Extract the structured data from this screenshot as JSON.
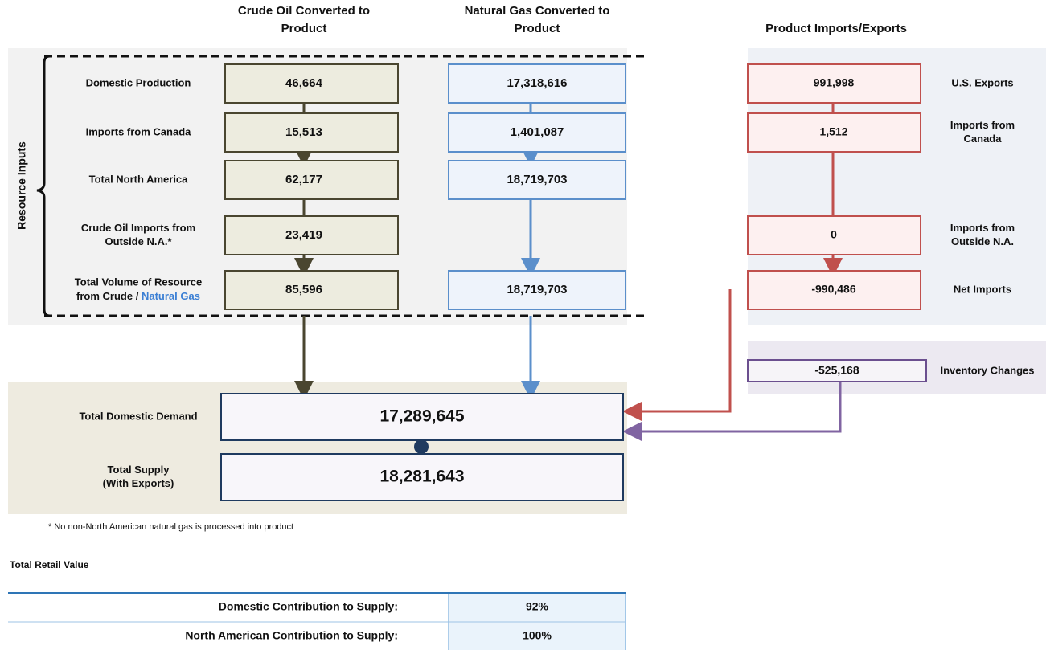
{
  "headers": {
    "crude": [
      "Crude Oil Converted to",
      "Product"
    ],
    "gas": [
      "Natural Gas Converted to",
      "Product"
    ],
    "trade": "Product Imports/Exports"
  },
  "side_label": "Resource Inputs",
  "rows": [
    {
      "label": [
        "Domestic Production"
      ],
      "crude": "46,664",
      "gas": "17,318,616"
    },
    {
      "label": [
        "Imports from Canada"
      ],
      "crude": "15,513",
      "gas": "1,401,087"
    },
    {
      "label": [
        "Total North America"
      ],
      "crude": "62,177",
      "gas": "18,719,703"
    },
    {
      "label": [
        "Crude Oil Imports from",
        "Outside N.A.*"
      ],
      "crude": "23,419",
      "gas": null
    },
    {
      "label": [
        "Total Volume of Resource",
        "from Crude /"
      ],
      "label_highlight": "Natural Gas",
      "crude": "85,596",
      "gas": "18,719,703"
    }
  ],
  "trade": [
    {
      "row": 0,
      "value": "991,998",
      "label": [
        "U.S. Exports"
      ]
    },
    {
      "row": 1,
      "value": "1,512",
      "label": [
        "Imports from",
        "Canada"
      ]
    },
    {
      "row": 3,
      "value": "0",
      "label": [
        "Imports from",
        "Outside N.A."
      ]
    },
    {
      "row": 4,
      "value": "-990,486",
      "label": [
        "Net Imports"
      ]
    }
  ],
  "inventory": {
    "value": "-525,168",
    "label": "Inventory Changes"
  },
  "demand": {
    "label": "Total Domestic Demand",
    "value": "17,289,645"
  },
  "supply": {
    "label": [
      "Total Supply",
      "(With Exports)"
    ],
    "value": "18,281,643"
  },
  "footnote": "* No non-North American natural gas is processed into product",
  "retail_title": "Total Retail Value",
  "contributions": [
    {
      "label": "Domestic Contribution to Supply:",
      "value": "92%"
    },
    {
      "label": "North American Contribution to Supply:",
      "value": "100%"
    }
  ]
}
